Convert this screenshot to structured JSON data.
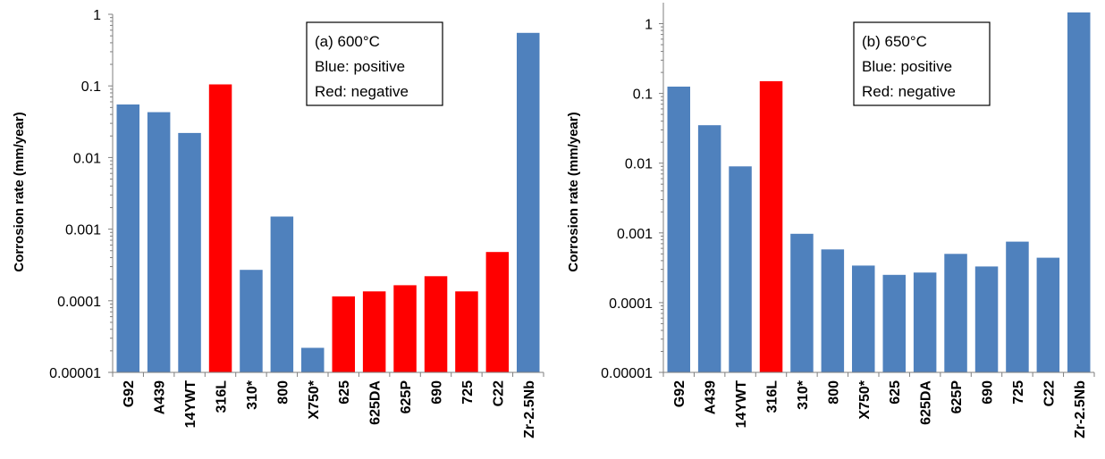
{
  "chart_data": [
    {
      "type": "bar",
      "title": "",
      "ylabel": "Corrosion rate (mm/year)",
      "xlabel": "",
      "yscale": "log",
      "ylim": [
        1e-05,
        1
      ],
      "yticks": [
        "1",
        "0.1",
        "0.01",
        "0.001",
        "0.0001",
        "0.00001"
      ],
      "grid": false,
      "legend_box": [
        "(a) 600°C",
        "Blue: positive",
        "Red: negative"
      ],
      "legend_placement": "top-center",
      "colors": {
        "positive": "#4F81BD",
        "negative": "#FF0000"
      },
      "categories": [
        "G92",
        "A439",
        "14YWT",
        "316L",
        "310*",
        "800",
        "X750*",
        "625",
        "625DA",
        "625P",
        "690",
        "725",
        "C22",
        "Zr-2.5Nb"
      ],
      "values": [
        0.055,
        0.043,
        0.022,
        0.105,
        0.00027,
        0.0015,
        2.2e-05,
        0.000115,
        0.000135,
        0.000165,
        0.00022,
        0.000135,
        0.00048,
        0.55
      ],
      "signs": [
        "positive",
        "positive",
        "positive",
        "negative",
        "positive",
        "positive",
        "positive",
        "negative",
        "negative",
        "negative",
        "negative",
        "negative",
        "negative",
        "positive"
      ]
    },
    {
      "type": "bar",
      "title": "",
      "ylabel": "Corrosion rate (mm/year)",
      "xlabel": "",
      "yscale": "log",
      "ylim": [
        1e-05,
        2
      ],
      "yticks": [
        "1",
        "0.1",
        "0.01",
        "0.001",
        "0.0001",
        "0.00001"
      ],
      "grid": false,
      "legend_box": [
        "(b) 650°C",
        "Blue: positive",
        "Red: negative"
      ],
      "legend_placement": "top-center",
      "colors": {
        "positive": "#4F81BD",
        "negative": "#FF0000"
      },
      "categories": [
        "G92",
        "A439",
        "14YWT",
        "316L",
        "310*",
        "800",
        "X750*",
        "625",
        "625DA",
        "625P",
        "690",
        "725",
        "C22",
        "Zr-2.5Nb"
      ],
      "values": [
        0.125,
        0.035,
        0.009,
        0.15,
        0.00097,
        0.00058,
        0.00034,
        0.00025,
        0.00027,
        0.0005,
        0.00033,
        0.00075,
        0.00044,
        1.45
      ],
      "signs": [
        "positive",
        "positive",
        "positive",
        "negative",
        "positive",
        "positive",
        "positive",
        "positive",
        "positive",
        "positive",
        "positive",
        "positive",
        "positive",
        "positive"
      ]
    }
  ]
}
